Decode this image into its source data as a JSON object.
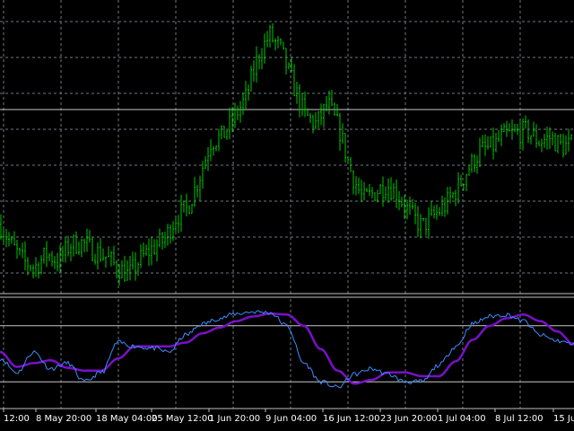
{
  "chart_data": {
    "type": "line",
    "colors": {
      "background": "#000000",
      "grid": "#6e7780",
      "price_bars": "#00c800",
      "fast_line": "#3c8cff",
      "slow_line": "#7a10c8",
      "level_lines": "#c8c8c8",
      "axis_text": "#ffffff"
    },
    "grid": true,
    "x_axis": {
      "tick_labels": [
        "12:00",
        "8 May 20:00",
        "18 May 04:00",
        "25 May 12:00",
        "1 Jun 20:00",
        "9 Jun 04:00",
        "16 Jun 12:00",
        "23 Jun 20:00",
        "1 Jul 04:00",
        "8 Jul 12:00",
        "15 Jul"
      ]
    },
    "price_series": {
      "name": "",
      "style": "bars",
      "levels": [
        1.0,
        0.84,
        0.72,
        0.68,
        0.78,
        0.72,
        0.85,
        0.86,
        0.8,
        0.76,
        0.68,
        0.62,
        0.74,
        0.82,
        0.88,
        1.05,
        1.12,
        1.35,
        1.62,
        1.66,
        1.8,
        1.95,
        2.25,
        2.42,
        2.3,
        2.05,
        1.82,
        1.75,
        1.9,
        1.7,
        1.38,
        1.18,
        1.24,
        1.3,
        1.22,
        1.08,
        0.98,
        1.06,
        1.14,
        1.26,
        1.42,
        1.55,
        1.58,
        1.66,
        1.68,
        1.7,
        1.62,
        1.65,
        1.58,
        1.6
      ]
    },
    "oscillator": {
      "levels": [
        80,
        20
      ],
      "fast_values": [
        45,
        30,
        52,
        34,
        40,
        20,
        30,
        62,
        58,
        56,
        52,
        70,
        82,
        88,
        93,
        95,
        94,
        80,
        40,
        20,
        14,
        28,
        34,
        28,
        20,
        20,
        38,
        58,
        82,
        90,
        92,
        85,
        70,
        64,
        60
      ],
      "slow_values": [
        52,
        36,
        40,
        43,
        35,
        32,
        32,
        45,
        58,
        58,
        58,
        62,
        72,
        78,
        85,
        90,
        93,
        92,
        80,
        55,
        32,
        18,
        22,
        30,
        30,
        26,
        26,
        42,
        65,
        80,
        88,
        92,
        85,
        74,
        60
      ]
    }
  }
}
